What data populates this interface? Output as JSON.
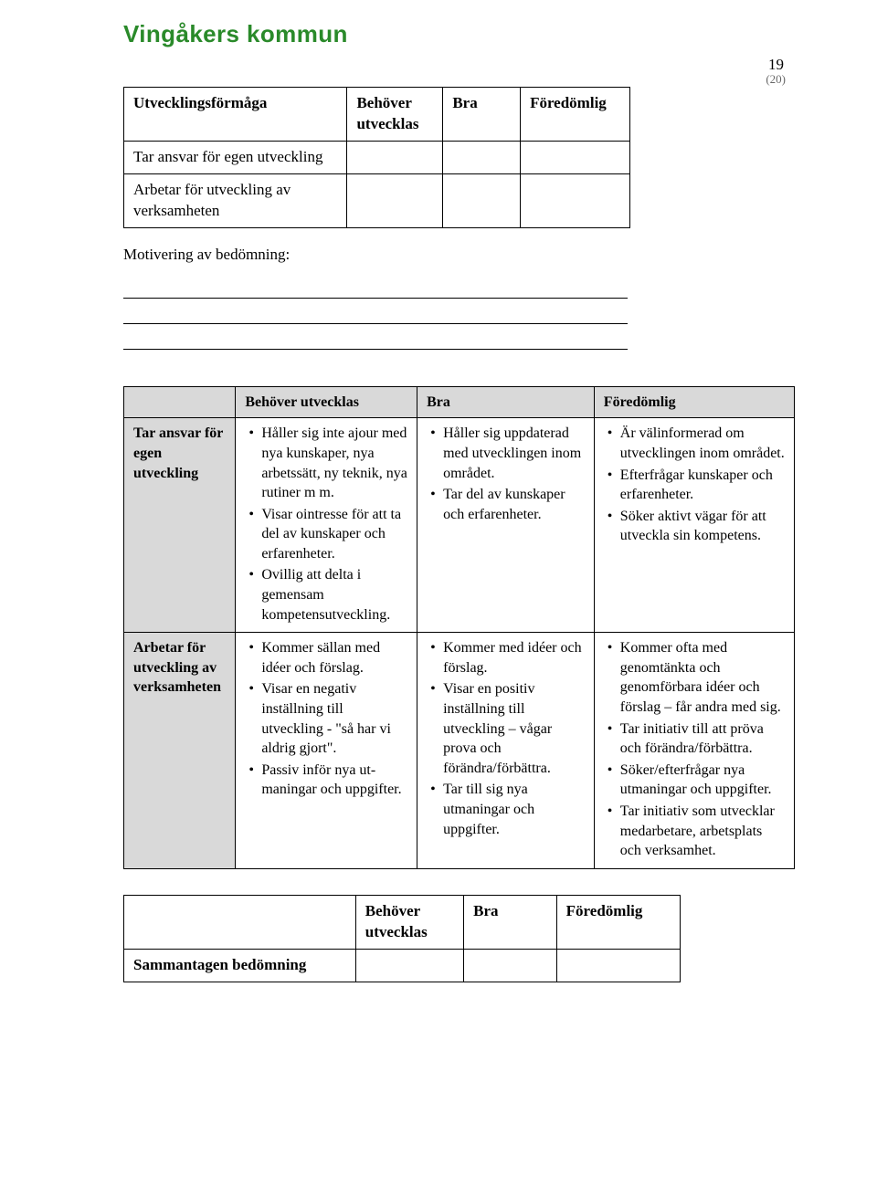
{
  "page_number": "19",
  "page_subnum": "(20)",
  "org_name": "Vingåkers kommun",
  "table1": {
    "headers": [
      "Utvecklingsförmåga",
      "Behöver utvecklas",
      "Bra",
      "Föredömlig"
    ],
    "rows": [
      "Tar ansvar för egen utveckling",
      "Arbetar för utveckling av verksamheten"
    ]
  },
  "motivering_label": "Motivering av bedömning:",
  "table2": {
    "headers": [
      "",
      "Behöver utvecklas",
      "Bra",
      "Föredömlig"
    ],
    "rows": [
      {
        "label": "Tar ansvar för egen utveckling",
        "cols": [
          [
            "Håller sig inte ajour med nya kunskaper, nya arbetssätt, ny teknik, nya rutiner m m.",
            "Visar ointresse för att ta del av kunskaper och erfarenheter.",
            "Ovillig att delta i gemensam kompetensutveckling."
          ],
          [
            "Håller sig uppdaterad med utvecklingen inom området.",
            "Tar del av kunskaper och erfarenheter."
          ],
          [
            "Är välinformerad om utvecklingen inom området.",
            "Efterfrågar kunskaper och erfarenheter.",
            "Söker aktivt vägar för att utveckla sin kompetens."
          ]
        ]
      },
      {
        "label": "Arbetar för utveckling av verksamheten",
        "cols": [
          [
            "Kommer sällan med idéer och förslag.",
            "Visar en negativ inställning till utveckling - \"så har vi aldrig gjort\".",
            "Passiv inför nya ut-maningar och uppgifter."
          ],
          [
            "Kommer med idéer och förslag.",
            "Visar en positiv inställning till utveckling – vågar prova och förändra/förbättra.",
            "Tar till sig nya utmaningar och uppgifter."
          ],
          [
            "Kommer ofta med genomtänkta och genomförbara idéer och förslag – får andra med sig.",
            "Tar initiativ till att pröva och förändra/förbättra.",
            "Söker/efterfrågar nya utmaningar och uppgifter.",
            "Tar initiativ som utvecklar medarbetare, arbetsplats och verksamhet."
          ]
        ]
      }
    ]
  },
  "table3": {
    "headers": [
      "",
      "Behöver utvecklas",
      "Bra",
      "Föredömlig"
    ],
    "row": "Sammantagen bedömning"
  }
}
